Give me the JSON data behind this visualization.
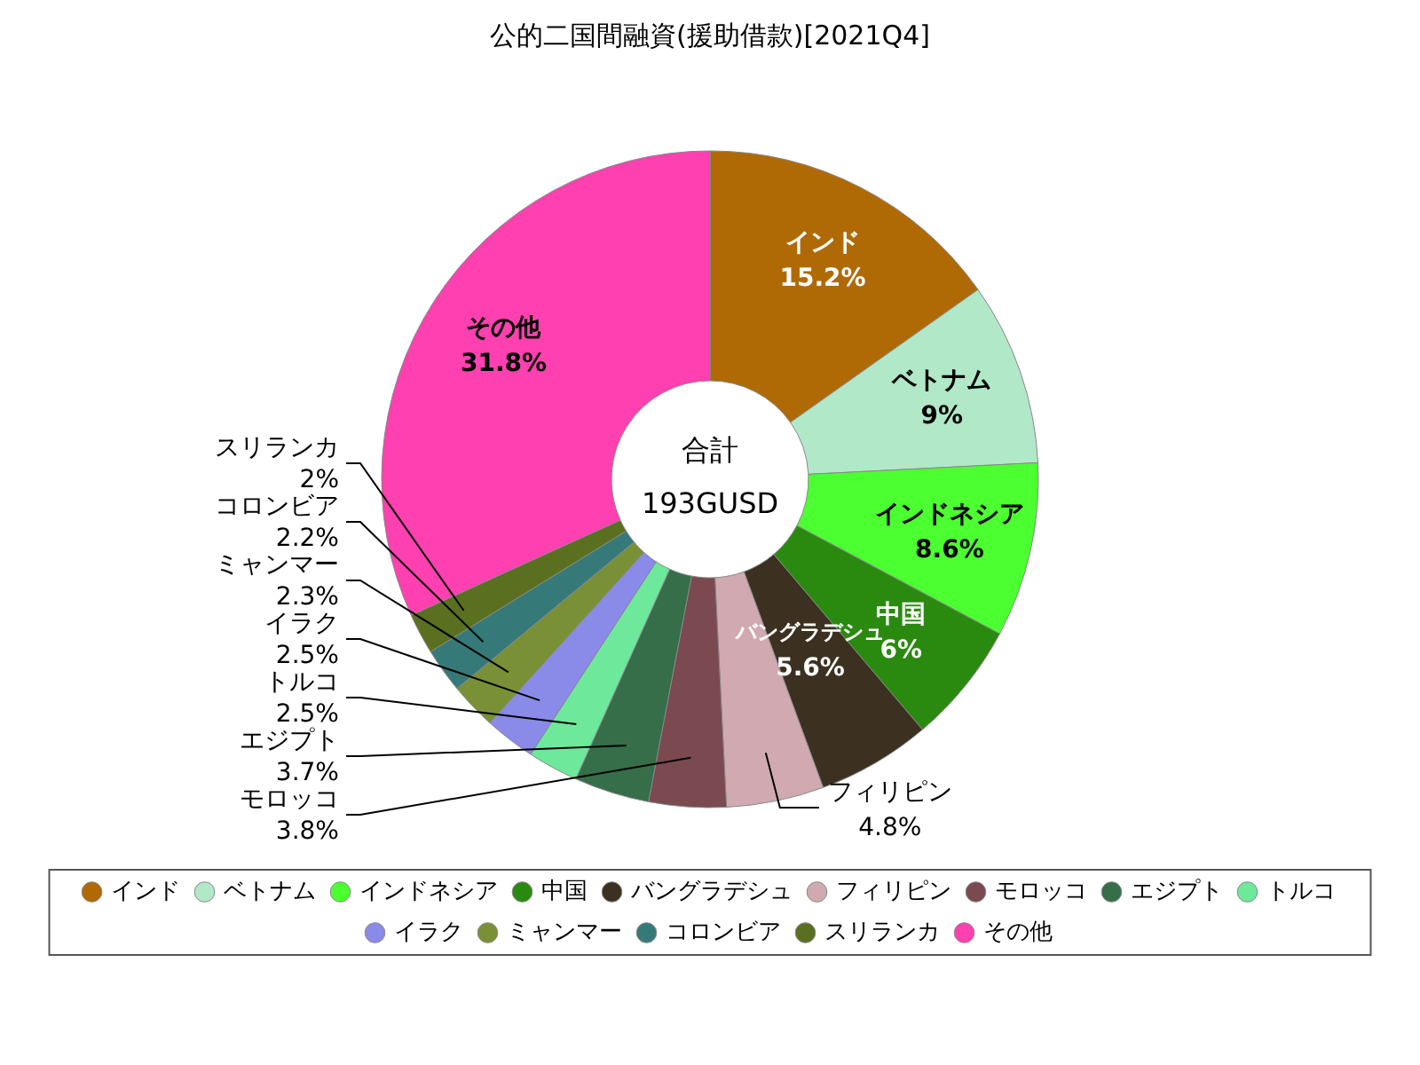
{
  "chart_data": {
    "type": "donut",
    "title": "公的二国間融資(援助借款)[2021Q4]",
    "categories": [
      "インド",
      "ベトナム",
      "インドネシア",
      "中国",
      "バングラデシュ",
      "フィリピン",
      "モロッコ",
      "エジプト",
      "トルコ",
      "イラク",
      "ミャンマー",
      "コロンビア",
      "スリランカ",
      "その他"
    ],
    "values": [
      15.2,
      9,
      8.6,
      6,
      5.6,
      4.8,
      3.8,
      3.7,
      2.5,
      2.5,
      2.3,
      2.2,
      2,
      31.8
    ],
    "colors": [
      "#b06a05",
      "#b0e8c8",
      "#4cff30",
      "#2a8a10",
      "#3c3020",
      "#d0aab0",
      "#7a4a50",
      "#356e48",
      "#6ee89a",
      "#8a8ae8",
      "#7a9036",
      "#357a78",
      "#5a7020",
      "#ff40b0"
    ],
    "annotations": [
      "合計",
      "193GUSD"
    ],
    "value_labels": [
      "15.2%",
      "9%",
      "8.6%",
      "6%",
      "5.6%",
      "4.8%",
      "3.8%",
      "3.7%",
      "2.5%",
      "2.5%",
      "2.3%",
      "2.2%",
      "2%",
      "31.8%"
    ],
    "legend": "bottom"
  }
}
